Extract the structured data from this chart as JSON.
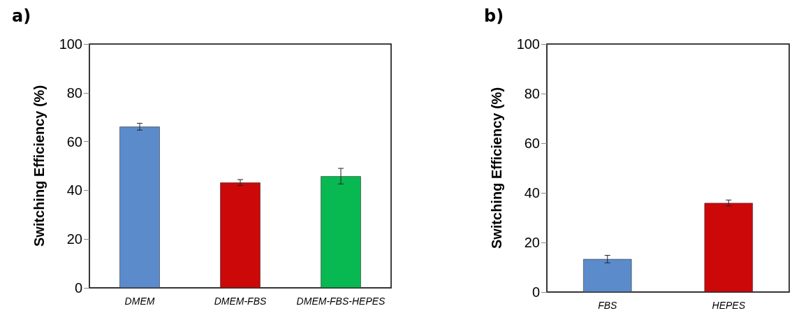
{
  "chart_data": [
    {
      "type": "bar",
      "title": "a)",
      "ylabel": "Switching Efficiency (%)",
      "categories": [
        "DMEM",
        "DMEM-FBS",
        "DMEM-FBS-HEPES"
      ],
      "values": [
        66.1,
        43.2,
        45.8
      ],
      "errors": [
        1.4,
        1.2,
        3.2
      ],
      "colors": [
        "#5b8bcb",
        "#cc0808",
        "#08b850"
      ],
      "ylim": [
        0,
        100
      ],
      "yticks": [
        0,
        20,
        40,
        60,
        80,
        100
      ]
    },
    {
      "type": "bar",
      "title": "b)",
      "ylabel": "Switching Efficiency (%)",
      "categories": [
        "FBS",
        "HEPES"
      ],
      "values": [
        13.3,
        35.9
      ],
      "errors": [
        1.5,
        1.2
      ],
      "colors": [
        "#5b8bcb",
        "#cc0808"
      ],
      "ylim": [
        0,
        100
      ],
      "yticks": [
        0,
        20,
        40,
        60,
        80,
        100
      ]
    }
  ]
}
